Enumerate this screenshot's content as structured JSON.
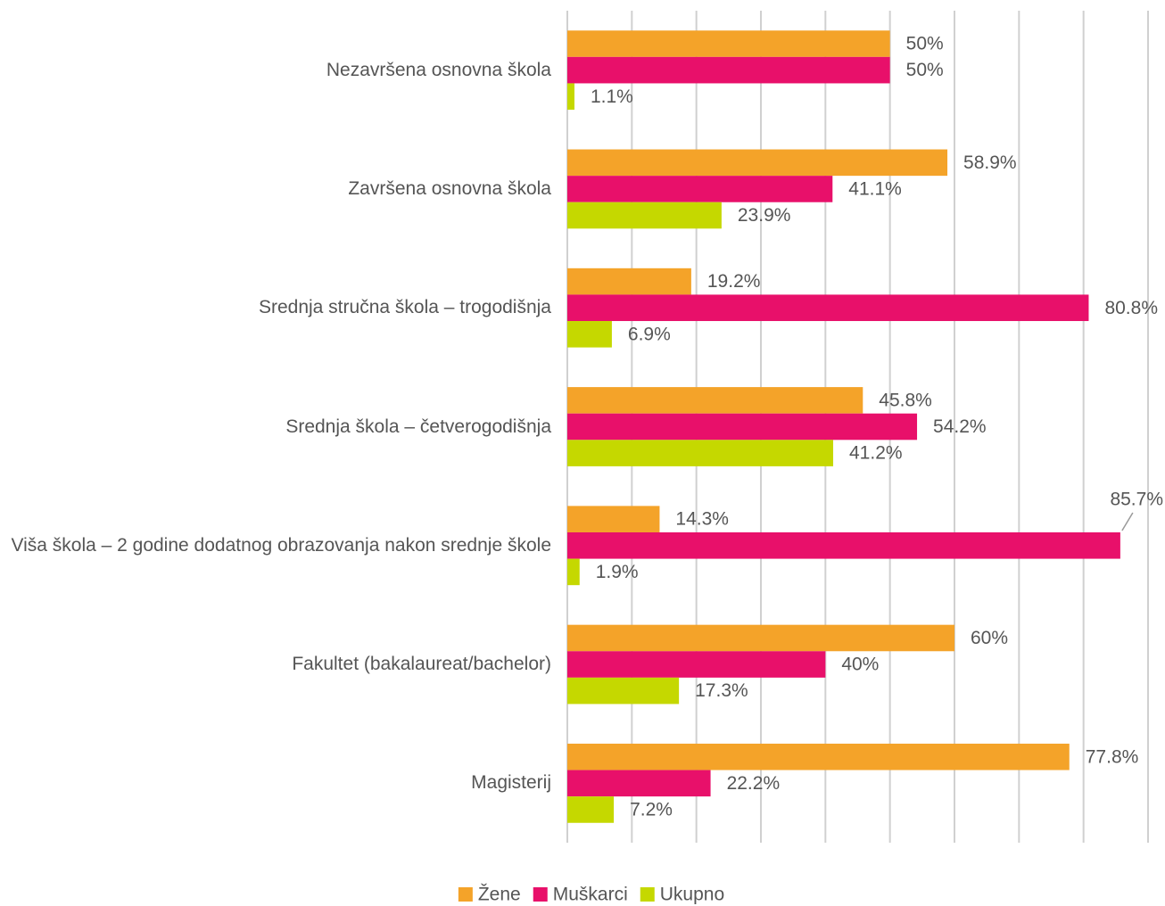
{
  "chart_data": {
    "type": "barh",
    "categories": [
      "Nezavršena osnovna škola",
      "Završena osnovna škola",
      "Srednja stručna škola – trogodišnja",
      "Srednja škola – četverogodišnja",
      "Viša škola – 2 godine dodatnog obrazovanja nakon srednje škole",
      "Fakultet (bakalaureat/bachelor)",
      "Magisterij"
    ],
    "series": [
      {
        "name": "Žene",
        "color": "#f4a329",
        "values": [
          50,
          58.9,
          19.2,
          45.8,
          14.3,
          60,
          77.8
        ],
        "value_labels": [
          "50%",
          "58.9%",
          "19.2%",
          "45.8%",
          "14.3%",
          "60%",
          "77.8%"
        ]
      },
      {
        "name": "Muškarci",
        "color": "#e8106a",
        "values": [
          50,
          41.1,
          80.8,
          54.2,
          85.7,
          40,
          22.2
        ],
        "value_labels": [
          "50%",
          "41.1%",
          "80.8%",
          "54.2%",
          "85.7%",
          "40%",
          "22.2%"
        ]
      },
      {
        "name": "Ukupno",
        "color": "#c5d800",
        "values": [
          1.1,
          23.9,
          6.9,
          41.2,
          1.9,
          17.3,
          7.2
        ],
        "value_labels": [
          "1.1%",
          "23.9%",
          "6.9%",
          "41.2%",
          "1.9%",
          "17.3%",
          "7.2%"
        ]
      }
    ],
    "xlim": [
      0,
      90
    ],
    "xticks": [
      0,
      10,
      20,
      30,
      40,
      50,
      60,
      70,
      80,
      90
    ],
    "grid": true,
    "legend": "bottom"
  }
}
